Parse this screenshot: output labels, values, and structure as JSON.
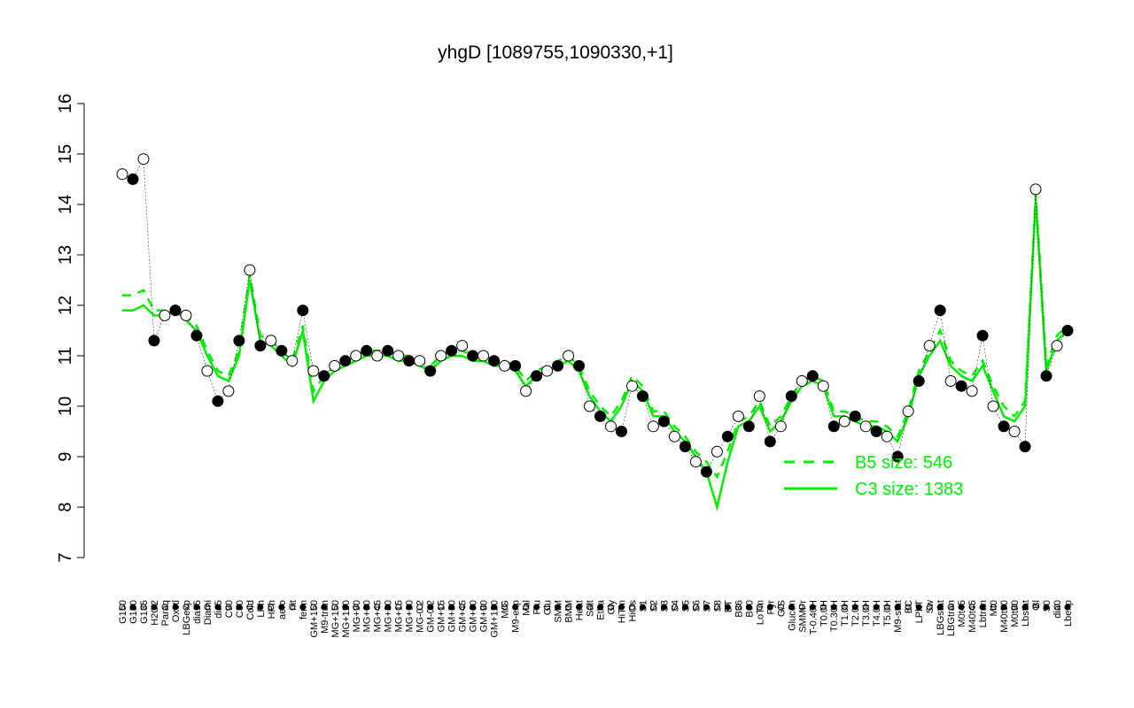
{
  "chart_data": {
    "type": "line",
    "title": "yhgD [1089755,1090330,+1]",
    "categories": [
      "G150",
      "G180",
      "G135",
      "H2O2",
      "Paraq",
      "Oxctl",
      "LBGexp",
      "dia15",
      "Diami",
      "dia5",
      "C90",
      "C30",
      "Cold",
      "LPh",
      "HPh",
      "aero",
      "nit",
      "ferm",
      "GM+150",
      "M9-tran",
      "MG+150",
      "MG+120",
      "MG+90",
      "MG+60",
      "MG+45",
      "MG+30",
      "MG+15",
      "MG+10",
      "MG-0.2",
      "GM-0.2",
      "GM+15",
      "GM+30",
      "GM+45",
      "GM+60",
      "GM+90",
      "GM+120",
      "M/G",
      "M9-exp",
      "Mal",
      "Fru",
      "Glu",
      "SMM",
      "BMM",
      "Heat",
      "Salt",
      "Etha",
      "Gly",
      "HiTm",
      "HiOs",
      "S1",
      "S2",
      "S3",
      "S4",
      "S5",
      "S6",
      "S7",
      "S8",
      "BT",
      "B36",
      "B60",
      "LoTm",
      "Pyr",
      "G/S",
      "Glucon",
      "SMMPr",
      "T-0.40H",
      "T0.0H",
      "T0.30H",
      "T1.0H",
      "T2.0H",
      "T3.0H",
      "T4.0H",
      "T5.0H",
      "M9-stat",
      "BC",
      "LPhT",
      "Sw",
      "LBGstat",
      "LBGtran",
      "M0t45",
      "M40t45",
      "Lbtran",
      "Mt0",
      "M40t90",
      "M0t90",
      "Lbstat",
      "Bl",
      "S0",
      "dia0",
      "Lbexp"
    ],
    "values": [
      14.6,
      14.5,
      14.9,
      11.3,
      11.8,
      11.9,
      11.8,
      11.4,
      10.7,
      10.1,
      10.3,
      11.3,
      12.7,
      11.2,
      11.3,
      11.1,
      10.9,
      11.9,
      10.7,
      10.6,
      10.8,
      10.9,
      11.0,
      11.1,
      11.0,
      11.1,
      11.0,
      10.9,
      10.9,
      10.7,
      11.0,
      11.1,
      11.2,
      11.0,
      11.0,
      10.9,
      10.8,
      10.8,
      10.3,
      10.6,
      10.7,
      10.8,
      11.0,
      10.8,
      10.0,
      9.8,
      9.6,
      9.5,
      10.4,
      10.2,
      9.6,
      9.7,
      9.4,
      9.2,
      8.9,
      8.7,
      9.1,
      9.4,
      9.8,
      9.6,
      10.2,
      9.3,
      9.6,
      10.2,
      10.5,
      10.6,
      10.4,
      9.6,
      9.7,
      9.8,
      9.6,
      9.5,
      9.4,
      9.0,
      9.9,
      10.5,
      11.2,
      11.9,
      10.5,
      10.4,
      10.3,
      11.4,
      10.0,
      9.6,
      9.5,
      9.2,
      14.3,
      10.6,
      11.2,
      11.5
    ],
    "point_color": "#000000",
    "series": [
      {
        "name": "B5 size: 546",
        "color": "#00ee00",
        "dash": true,
        "values": [
          12.2,
          12.2,
          12.3,
          11.9,
          11.9,
          12.0,
          11.8,
          11.6,
          11.1,
          10.7,
          10.6,
          11.1,
          12.6,
          11.4,
          11.3,
          11.1,
          10.9,
          11.6,
          10.3,
          10.6,
          10.8,
          10.9,
          11.0,
          11.1,
          11.1,
          11.1,
          11.0,
          11.0,
          10.9,
          10.8,
          11.0,
          11.1,
          11.1,
          11.0,
          11.0,
          10.9,
          10.9,
          10.8,
          10.5,
          10.7,
          10.8,
          10.9,
          11.0,
          10.8,
          10.3,
          10.0,
          9.8,
          10.1,
          10.6,
          10.4,
          9.9,
          9.9,
          9.6,
          9.4,
          9.1,
          8.9,
          8.6,
          9.1,
          9.7,
          9.8,
          10.1,
          9.6,
          9.8,
          10.2,
          10.5,
          10.6,
          10.5,
          9.9,
          9.9,
          9.8,
          9.7,
          9.7,
          9.6,
          9.4,
          9.9,
          10.7,
          11.1,
          11.5,
          10.9,
          10.7,
          10.6,
          10.9,
          10.4,
          10.0,
          9.8,
          10.1,
          14.2,
          10.8,
          11.4,
          11.6
        ]
      },
      {
        "name": "C3 size: 1383",
        "color": "#00ee00",
        "dash": false,
        "values": [
          11.9,
          11.9,
          12.0,
          11.8,
          11.8,
          11.9,
          11.7,
          11.5,
          11.0,
          10.6,
          10.5,
          11.0,
          12.5,
          11.3,
          11.2,
          11.0,
          10.8,
          11.5,
          10.1,
          10.5,
          10.7,
          10.8,
          10.9,
          11.0,
          11.0,
          11.0,
          10.9,
          10.9,
          10.8,
          10.7,
          10.9,
          11.0,
          11.0,
          10.9,
          10.9,
          10.8,
          10.8,
          10.7,
          10.4,
          10.6,
          10.7,
          10.8,
          10.9,
          10.7,
          10.2,
          9.9,
          9.7,
          10.0,
          10.5,
          10.3,
          9.8,
          9.8,
          9.5,
          9.3,
          9.0,
          8.7,
          8.0,
          8.9,
          9.6,
          9.7,
          10.0,
          9.5,
          9.7,
          10.1,
          10.4,
          10.5,
          10.4,
          9.8,
          9.8,
          9.7,
          9.6,
          9.6,
          9.5,
          9.3,
          9.8,
          10.6,
          11.0,
          11.3,
          10.8,
          10.6,
          10.5,
          10.8,
          10.3,
          9.8,
          9.7,
          10.0,
          14.1,
          10.7,
          11.3,
          11.5
        ]
      }
    ],
    "ylim": [
      7,
      16
    ],
    "yticks": [
      7,
      8,
      9,
      10,
      11,
      12,
      13,
      14,
      15,
      16
    ]
  }
}
